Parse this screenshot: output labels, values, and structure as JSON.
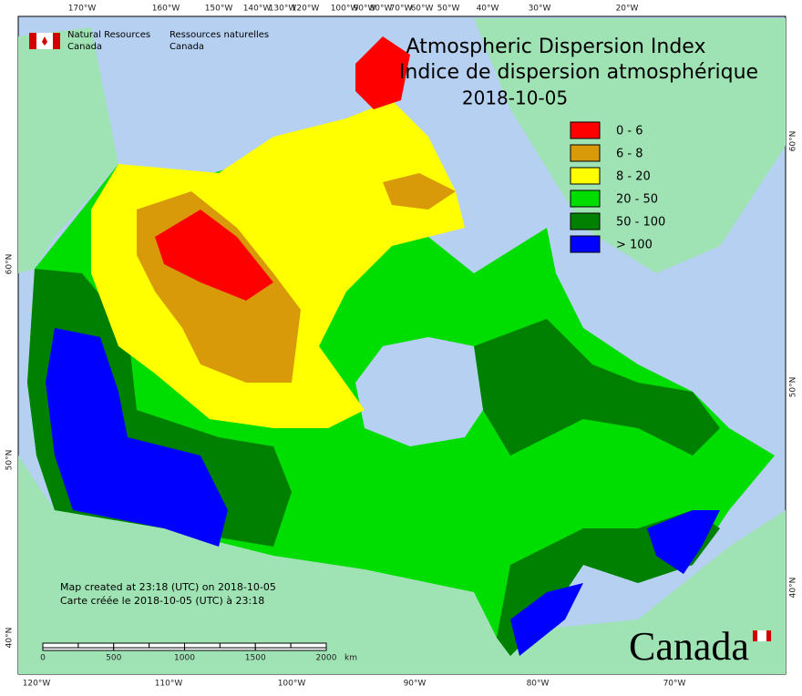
{
  "header": {
    "org_en": "Natural Resources",
    "org_en2": "Canada",
    "org_fr": "Ressources naturelles",
    "org_fr2": "Canada"
  },
  "title": [
    "Atmospheric Dispersion Index",
    "Indice de dispersion atmosphérique"
  ],
  "date": "2018-10-05",
  "legend": [
    {
      "label": "0 - 6",
      "color": "#ff0000"
    },
    {
      "label": "6 - 8",
      "color": "#d99a0a"
    },
    {
      "label": "8 - 20",
      "color": "#ffff00"
    },
    {
      "label": "20 - 50",
      "color": "#00dd00"
    },
    {
      "label": "50 - 100",
      "color": "#008000"
    },
    {
      "label": "> 100",
      "color": "#0000ff"
    }
  ],
  "top_labels": [
    "170°W",
    "160°W",
    "150°W",
    "140°W",
    "130°W",
    "120°W",
    "100°W",
    "90°W",
    "80°W",
    "70°W",
    "60°W",
    "50°W",
    "40°W",
    "30°W",
    "20°W"
  ],
  "bottom_labels": [
    "120°W",
    "110°W",
    "100°W",
    "90°W",
    "80°W",
    "70°W"
  ],
  "left_labels": [
    "60°N",
    "50°N",
    "40°N"
  ],
  "right_labels": [
    "60°N",
    "50°N",
    "40°N"
  ],
  "footer": [
    "Map created at 23:18 (UTC) on 2018-10-05",
    "Carte créée le 2018-10-05 (UTC) à 23:18"
  ],
  "scale": {
    "labels": [
      "0",
      "500",
      "1000",
      "1500",
      "2000"
    ],
    "unit": "km"
  },
  "wordmark": "Canada"
}
